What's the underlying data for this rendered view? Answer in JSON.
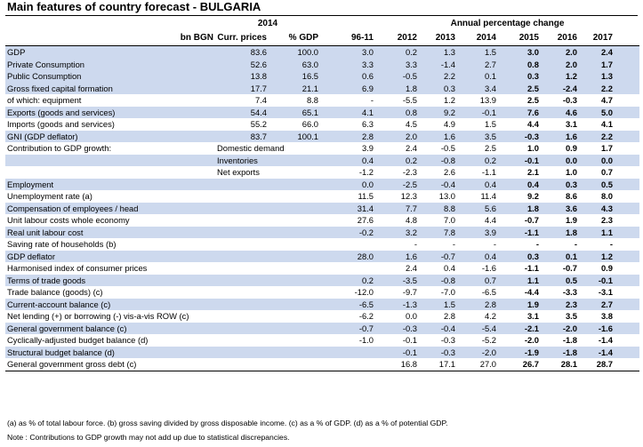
{
  "title": "Main features of country forecast - BULGARIA",
  "header": {
    "year_2014": "2014",
    "annual_change": "Annual percentage change",
    "col_bn": "bn BGN",
    "col_curr": "Curr. prices",
    "col_pct_gdp": "% GDP",
    "col_9611": "96-11",
    "col_2012": "2012",
    "col_2013": "2013",
    "col_2014": "2014",
    "col_2015": "2015",
    "col_2016": "2016",
    "col_2017": "2017"
  },
  "rows": [
    {
      "label": "GDP",
      "curr": "83.6",
      "pct": "100.0",
      "p": "3.0",
      "y2012": "0.2",
      "y2013": "1.3",
      "y2014": "1.5",
      "y2015": "3.0",
      "y2016": "2.0",
      "y2017": "2.4"
    },
    {
      "label": "Private Consumption",
      "curr": "52.6",
      "pct": "63.0",
      "p": "3.3",
      "y2012": "3.3",
      "y2013": "-1.4",
      "y2014": "2.7",
      "y2015": "0.8",
      "y2016": "2.0",
      "y2017": "1.7"
    },
    {
      "label": "Public Consumption",
      "curr": "13.8",
      "pct": "16.5",
      "p": "0.6",
      "y2012": "-0.5",
      "y2013": "2.2",
      "y2014": "0.1",
      "y2015": "0.3",
      "y2016": "1.2",
      "y2017": "1.3"
    },
    {
      "label": "Gross fixed capital formation",
      "curr": "17.7",
      "pct": "21.1",
      "p": "6.9",
      "y2012": "1.8",
      "y2013": "0.3",
      "y2014": "3.4",
      "y2015": "2.5",
      "y2016": "-2.4",
      "y2017": "2.2"
    },
    {
      "label": "of which: equipment",
      "curr": "7.4",
      "pct": "8.8",
      "p": "-",
      "y2012": "-5.5",
      "y2013": "1.2",
      "y2014": "13.9",
      "y2015": "2.5",
      "y2016": "-0.3",
      "y2017": "4.7"
    },
    {
      "label": "Exports (goods and services)",
      "curr": "54.4",
      "pct": "65.1",
      "p": "4.1",
      "y2012": "0.8",
      "y2013": "9.2",
      "y2014": "-0.1",
      "y2015": "7.6",
      "y2016": "4.6",
      "y2017": "5.0"
    },
    {
      "label": "Imports (goods and services)",
      "curr": "55.2",
      "pct": "66.0",
      "p": "6.3",
      "y2012": "4.5",
      "y2013": "4.9",
      "y2014": "1.5",
      "y2015": "4.4",
      "y2016": "3.1",
      "y2017": "4.1"
    },
    {
      "label": "GNI (GDP deflator)",
      "curr": "83.7",
      "pct": "100.1",
      "p": "2.8",
      "y2012": "2.0",
      "y2013": "1.6",
      "y2014": "3.5",
      "y2015": "-0.3",
      "y2016": "1.6",
      "y2017": "2.2"
    },
    {
      "label": "Contribution to GDP growth:",
      "sub": "Domestic demand",
      "curr": "",
      "pct": "",
      "p": "3.9",
      "y2012": "2.4",
      "y2013": "-0.5",
      "y2014": "2.5",
      "y2015": "1.0",
      "y2016": "0.9",
      "y2017": "1.7"
    },
    {
      "label": "",
      "sub": "Inventories",
      "curr": "",
      "pct": "",
      "p": "0.4",
      "y2012": "0.2",
      "y2013": "-0.8",
      "y2014": "0.2",
      "y2015": "-0.1",
      "y2016": "0.0",
      "y2017": "0.0"
    },
    {
      "label": "",
      "sub": "Net exports",
      "curr": "",
      "pct": "",
      "p": "-1.2",
      "y2012": "-2.3",
      "y2013": "2.6",
      "y2014": "-1.1",
      "y2015": "2.1",
      "y2016": "1.0",
      "y2017": "0.7"
    },
    {
      "label": "Employment",
      "curr": "",
      "pct": "",
      "p": "0.0",
      "y2012": "-2.5",
      "y2013": "-0.4",
      "y2014": "0.4",
      "y2015": "0.4",
      "y2016": "0.3",
      "y2017": "0.5"
    },
    {
      "label": "Unemployment rate (a)",
      "curr": "",
      "pct": "",
      "p": "11.5",
      "y2012": "12.3",
      "y2013": "13.0",
      "y2014": "11.4",
      "y2015": "9.2",
      "y2016": "8.6",
      "y2017": "8.0"
    },
    {
      "label": "Compensation of employees / head",
      "curr": "",
      "pct": "",
      "p": "31.4",
      "y2012": "7.7",
      "y2013": "8.8",
      "y2014": "5.6",
      "y2015": "1.8",
      "y2016": "3.6",
      "y2017": "4.3"
    },
    {
      "label": "Unit labour costs whole economy",
      "curr": "",
      "pct": "",
      "p": "27.6",
      "y2012": "4.8",
      "y2013": "7.0",
      "y2014": "4.4",
      "y2015": "-0.7",
      "y2016": "1.9",
      "y2017": "2.3"
    },
    {
      "label": "Real unit labour cost",
      "curr": "",
      "pct": "",
      "p": "-0.2",
      "y2012": "3.2",
      "y2013": "7.8",
      "y2014": "3.9",
      "y2015": "-1.1",
      "y2016": "1.8",
      "y2017": "1.1"
    },
    {
      "label": "Saving rate of households (b)",
      "curr": "",
      "pct": "",
      "p": "",
      "y2012": "-",
      "y2013": "-",
      "y2014": "-",
      "y2015": "-",
      "y2016": "-",
      "y2017": "-"
    },
    {
      "label": "GDP deflator",
      "curr": "",
      "pct": "",
      "p": "28.0",
      "y2012": "1.6",
      "y2013": "-0.7",
      "y2014": "0.4",
      "y2015": "0.3",
      "y2016": "0.1",
      "y2017": "1.2"
    },
    {
      "label": "Harmonised index of consumer prices",
      "curr": "",
      "pct": "",
      "p": "",
      "y2012": "2.4",
      "y2013": "0.4",
      "y2014": "-1.6",
      "y2015": "-1.1",
      "y2016": "-0.7",
      "y2017": "0.9"
    },
    {
      "label": "Terms of trade goods",
      "curr": "",
      "pct": "",
      "p": "0.2",
      "y2012": "-3.5",
      "y2013": "-0.8",
      "y2014": "0.7",
      "y2015": "1.1",
      "y2016": "0.5",
      "y2017": "-0.1"
    },
    {
      "label": "Trade balance (goods) (c)",
      "curr": "",
      "pct": "",
      "p": "-12.0",
      "y2012": "-9.7",
      "y2013": "-7.0",
      "y2014": "-6.5",
      "y2015": "-4.4",
      "y2016": "-3.3",
      "y2017": "-3.1"
    },
    {
      "label": "Current-account balance (c)",
      "curr": "",
      "pct": "",
      "p": "-6.5",
      "y2012": "-1.3",
      "y2013": "1.5",
      "y2014": "2.8",
      "y2015": "1.9",
      "y2016": "2.3",
      "y2017": "2.7"
    },
    {
      "label": "Net lending (+) or borrowing (-) vis-a-vis ROW (c)",
      "curr": "",
      "pct": "",
      "p": "-6.2",
      "y2012": "0.0",
      "y2013": "2.8",
      "y2014": "4.2",
      "y2015": "3.1",
      "y2016": "3.5",
      "y2017": "3.8"
    },
    {
      "label": "General government balance (c)",
      "curr": "",
      "pct": "",
      "p": "-0.7",
      "y2012": "-0.3",
      "y2013": "-0.4",
      "y2014": "-5.4",
      "y2015": "-2.1",
      "y2016": "-2.0",
      "y2017": "-1.6"
    },
    {
      "label": "Cyclically-adjusted budget balance (d)",
      "curr": "",
      "pct": "",
      "p": "-1.0",
      "y2012": "-0.1",
      "y2013": "-0.3",
      "y2014": "-5.2",
      "y2015": "-2.0",
      "y2016": "-1.8",
      "y2017": "-1.4"
    },
    {
      "label": "Structural budget balance (d)",
      "curr": "",
      "pct": "",
      "p": "",
      "y2012": "-0.1",
      "y2013": "-0.3",
      "y2014": "-2.0",
      "y2015": "-1.9",
      "y2016": "-1.8",
      "y2017": "-1.4"
    },
    {
      "label": "General government gross debt (c)",
      "curr": "",
      "pct": "",
      "p": "",
      "y2012": "16.8",
      "y2013": "17.1",
      "y2014": "27.0",
      "y2015": "26.7",
      "y2016": "28.1",
      "y2017": "28.7"
    }
  ],
  "footnote1": "(a) as % of total labour force. (b) gross saving divided by gross disposable income. (c) as a % of GDP. (d) as a % of potential GDP.",
  "footnote2": "Note : Contributions to GDP growth may not add up due to statistical discrepancies.",
  "colors": {
    "band": "#cdd9ee",
    "text": "#000000"
  }
}
